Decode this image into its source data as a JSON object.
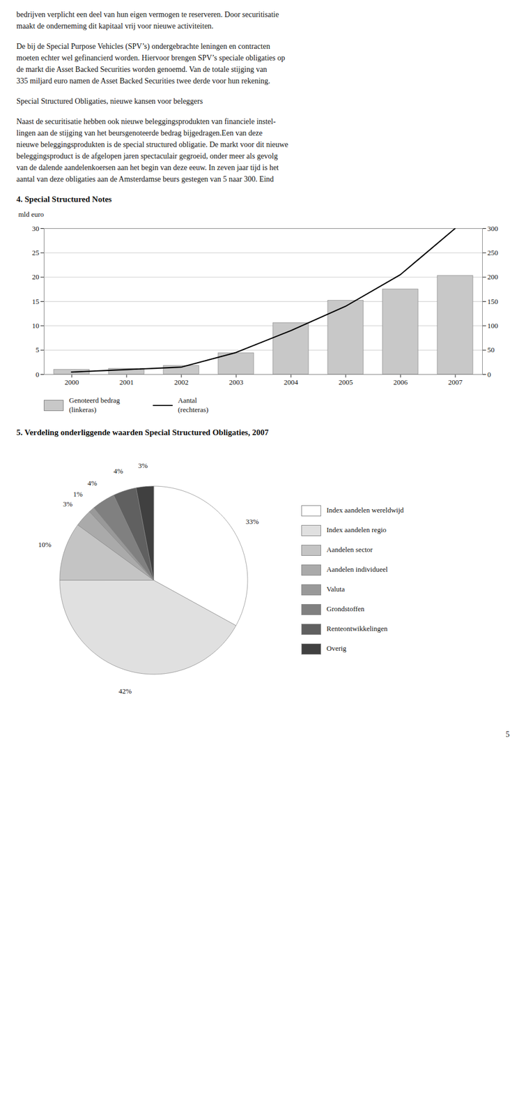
{
  "annotations": [
    "bedrijven verplicht een deel van hun eigen vermogen te reserveren. Door securitisatie\nmaakt de onderneming dit kapitaal vrij voor nieuwe activiteiten.",
    "De bij de Special Purpose Vehicles (SPV’s) ondergebrachte leningen en contracten\nmoeten echter wel gefinancierd worden. Hiervoor brengen SPV’s speciale obligaties op\nde markt die Asset Backed Securities worden genoemd. Van de totale stijging van\n335 miljard euro namen de Asset Backed Securities twee derde voor hun rekening.",
    "Special Structured Obligaties, nieuwe kansen voor beleggers",
    "Naast de securitisatie hebben ook nieuwe beleggingsprodukten van financiele instel-\nlingen aan de stijging van het beursgenoteerde bedrag bijgedragen.Een van deze\nnieuwe beleggingsprodukten is de special structured obligatie. De markt voor dit nieuwe\nbeleggingsproduct is de afgelopen jaren spectaculair gegroeid, onder meer als gevolg\nvan de dalende aandelenkoersen aan het begin van deze eeuw. In zeven jaar tijd is het\naantal van deze obligaties aan de Amsterdamse beurs gestegen van 5 naar 300. Eind",
    "5"
  ],
  "chart_data": [
    {
      "type": "bar",
      "title": "4.  Special Structured Notes",
      "ylabel": "mld euro",
      "categories": [
        "2000",
        "2001",
        "2002",
        "2003",
        "2004",
        "2005",
        "2006",
        "2007"
      ],
      "series": [
        {
          "name": "Genoteerd bedrag\n(linkeras)",
          "type": "bar",
          "color": "#c8c8c8",
          "values": [
            1.0,
            1.2,
            1.8,
            4.4,
            10.6,
            15.2,
            17.5,
            20.3
          ]
        },
        {
          "name": "Aantal\n(rechteras)",
          "type": "line",
          "color": "#000000",
          "axis": "y2",
          "values": [
            5,
            10,
            15,
            45,
            90,
            140,
            205,
            300
          ]
        }
      ],
      "ylim": [
        0,
        30
      ],
      "yticks": [
        0,
        5,
        10,
        15,
        20,
        25,
        30
      ],
      "y2lim": [
        0,
        300
      ],
      "y2ticks": [
        0,
        50,
        100,
        150,
        200,
        250,
        300
      ],
      "grid": true,
      "legend": "bottom"
    },
    {
      "type": "pie",
      "title": "5.  Verdeling onderliggende waarden Special Structured Obligaties, 2007",
      "categories": [
        "Index aandelen wereldwijd",
        "Index aandelen regio",
        "Aandelen sector",
        "Aandelen individueel",
        "Valuta",
        "Grondstoffen",
        "Renteontwikkelingen",
        "Overig"
      ],
      "values": [
        33,
        42,
        10,
        3,
        1,
        4,
        4,
        3
      ],
      "value_labels": [
        "33%",
        "42%",
        "10%",
        "3%",
        "1%",
        "4%",
        "4%",
        "3%"
      ],
      "colors": [
        "#ffffff",
        "#e0e0e0",
        "#c4c4c4",
        "#aaaaaa",
        "#999999",
        "#808080",
        "#606060",
        "#404040"
      ],
      "data_labels": true,
      "legend": "right"
    }
  ]
}
